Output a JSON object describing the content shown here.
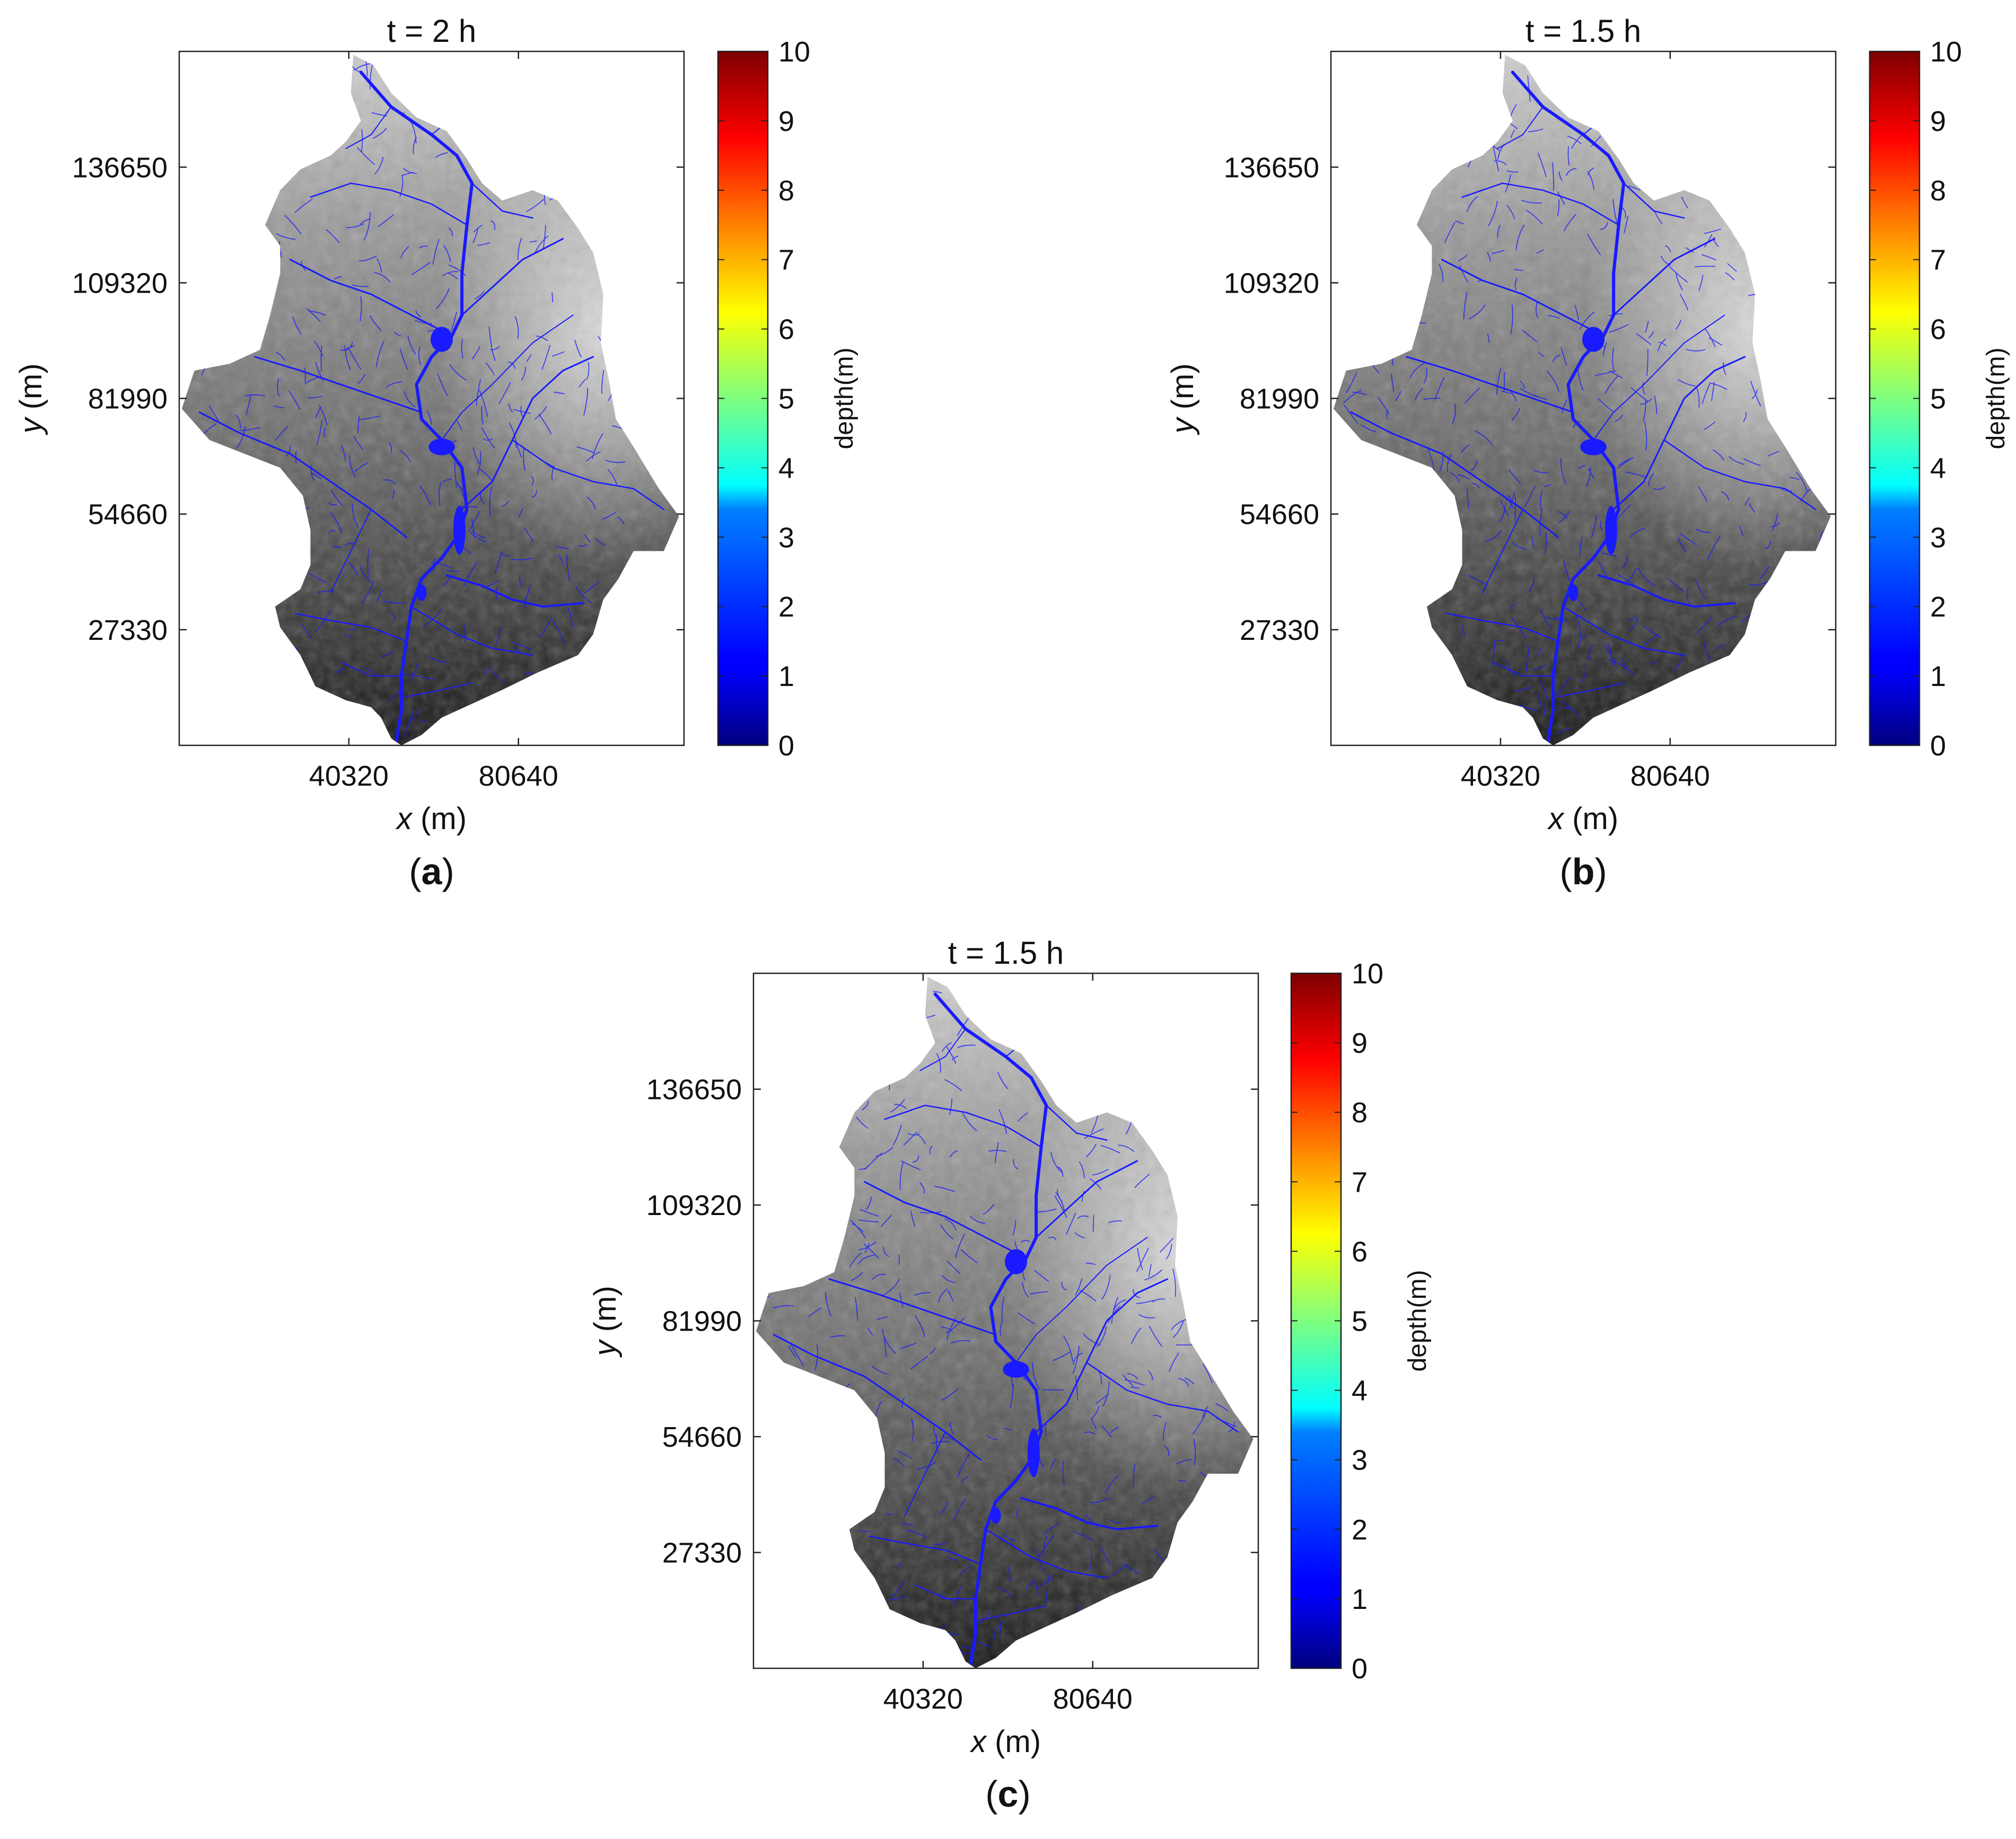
{
  "figure": {
    "panels": [
      {
        "id": "a",
        "title": "t = 2 h",
        "caption_letter": "a"
      },
      {
        "id": "b",
        "title": "t = 1.5 h",
        "caption_letter": "b"
      },
      {
        "id": "c",
        "title": "t = 1.5 h",
        "caption_letter": "c"
      }
    ]
  },
  "chart_data": [
    {
      "type": "heatmap",
      "title": "t = 2 h",
      "caption": "(a)",
      "xlabel": "x (m)",
      "ylabel": "y (m)",
      "xticks": [
        40320,
        80640
      ],
      "yticks": [
        27330,
        54660,
        81990,
        109320,
        136650
      ],
      "xlim": [
        0,
        120000
      ],
      "ylim": [
        0,
        164000
      ],
      "colorbar": {
        "label": "depth(m)",
        "min": 0,
        "max": 10,
        "ticks": [
          0,
          1,
          2,
          3,
          4,
          5,
          6,
          7,
          8,
          9,
          10
        ],
        "colormap": "jet"
      },
      "grid": false
    },
    {
      "type": "heatmap",
      "title": "t = 1.5 h",
      "caption": "(b)",
      "xlabel": "x (m)",
      "ylabel": "y (m)",
      "xticks": [
        40320,
        80640
      ],
      "yticks": [
        27330,
        54660,
        81990,
        109320,
        136650
      ],
      "xlim": [
        0,
        120000
      ],
      "ylim": [
        0,
        164000
      ],
      "colorbar": {
        "label": "depth(m)",
        "min": 0,
        "max": 10,
        "ticks": [
          0,
          1,
          2,
          3,
          4,
          5,
          6,
          7,
          8,
          9,
          10
        ],
        "colormap": "jet"
      },
      "grid": false
    },
    {
      "type": "heatmap",
      "title": "t = 1.5 h",
      "caption": "(c)",
      "xlabel": "x (m)",
      "ylabel": "y (m)",
      "xticks": [
        40320,
        80640
      ],
      "yticks": [
        27330,
        54660,
        81990,
        109320,
        136650
      ],
      "xlim": [
        0,
        120000
      ],
      "ylim": [
        0,
        164000
      ],
      "colorbar": {
        "label": "depth(m)",
        "min": 0,
        "max": 10,
        "ticks": [
          0,
          1,
          2,
          3,
          4,
          5,
          6,
          7,
          8,
          9,
          10
        ],
        "colormap": "jet"
      },
      "grid": false
    }
  ],
  "colors": {
    "river": "#1a1aff",
    "terrain_dark": "#1c1c1c",
    "terrain_light": "#e6e6e6",
    "axis": "#222222"
  }
}
